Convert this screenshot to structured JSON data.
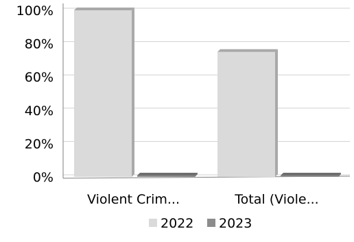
{
  "chart_data": {
    "type": "bar",
    "categories": [
      "Violent Crim...",
      "Total (Viole..."
    ],
    "series": [
      {
        "name": "2022",
        "values": [
          100,
          75
        ]
      },
      {
        "name": "2023",
        "values": [
          0,
          0
        ]
      }
    ],
    "ylim": [
      0,
      100
    ],
    "yticks": [
      "0%",
      "20%",
      "40%",
      "60%",
      "80%",
      "100%"
    ],
    "grid": true,
    "legend_position": "bottom",
    "style": "3d",
    "colors": {
      "2022_front": "#dadada",
      "2022_side": "#a9a9a9",
      "2023_front": "#8c8c8c",
      "2023_side": "#6e6e6e",
      "grid": "#d0d0d0",
      "axis": "#7f7f7f"
    }
  }
}
